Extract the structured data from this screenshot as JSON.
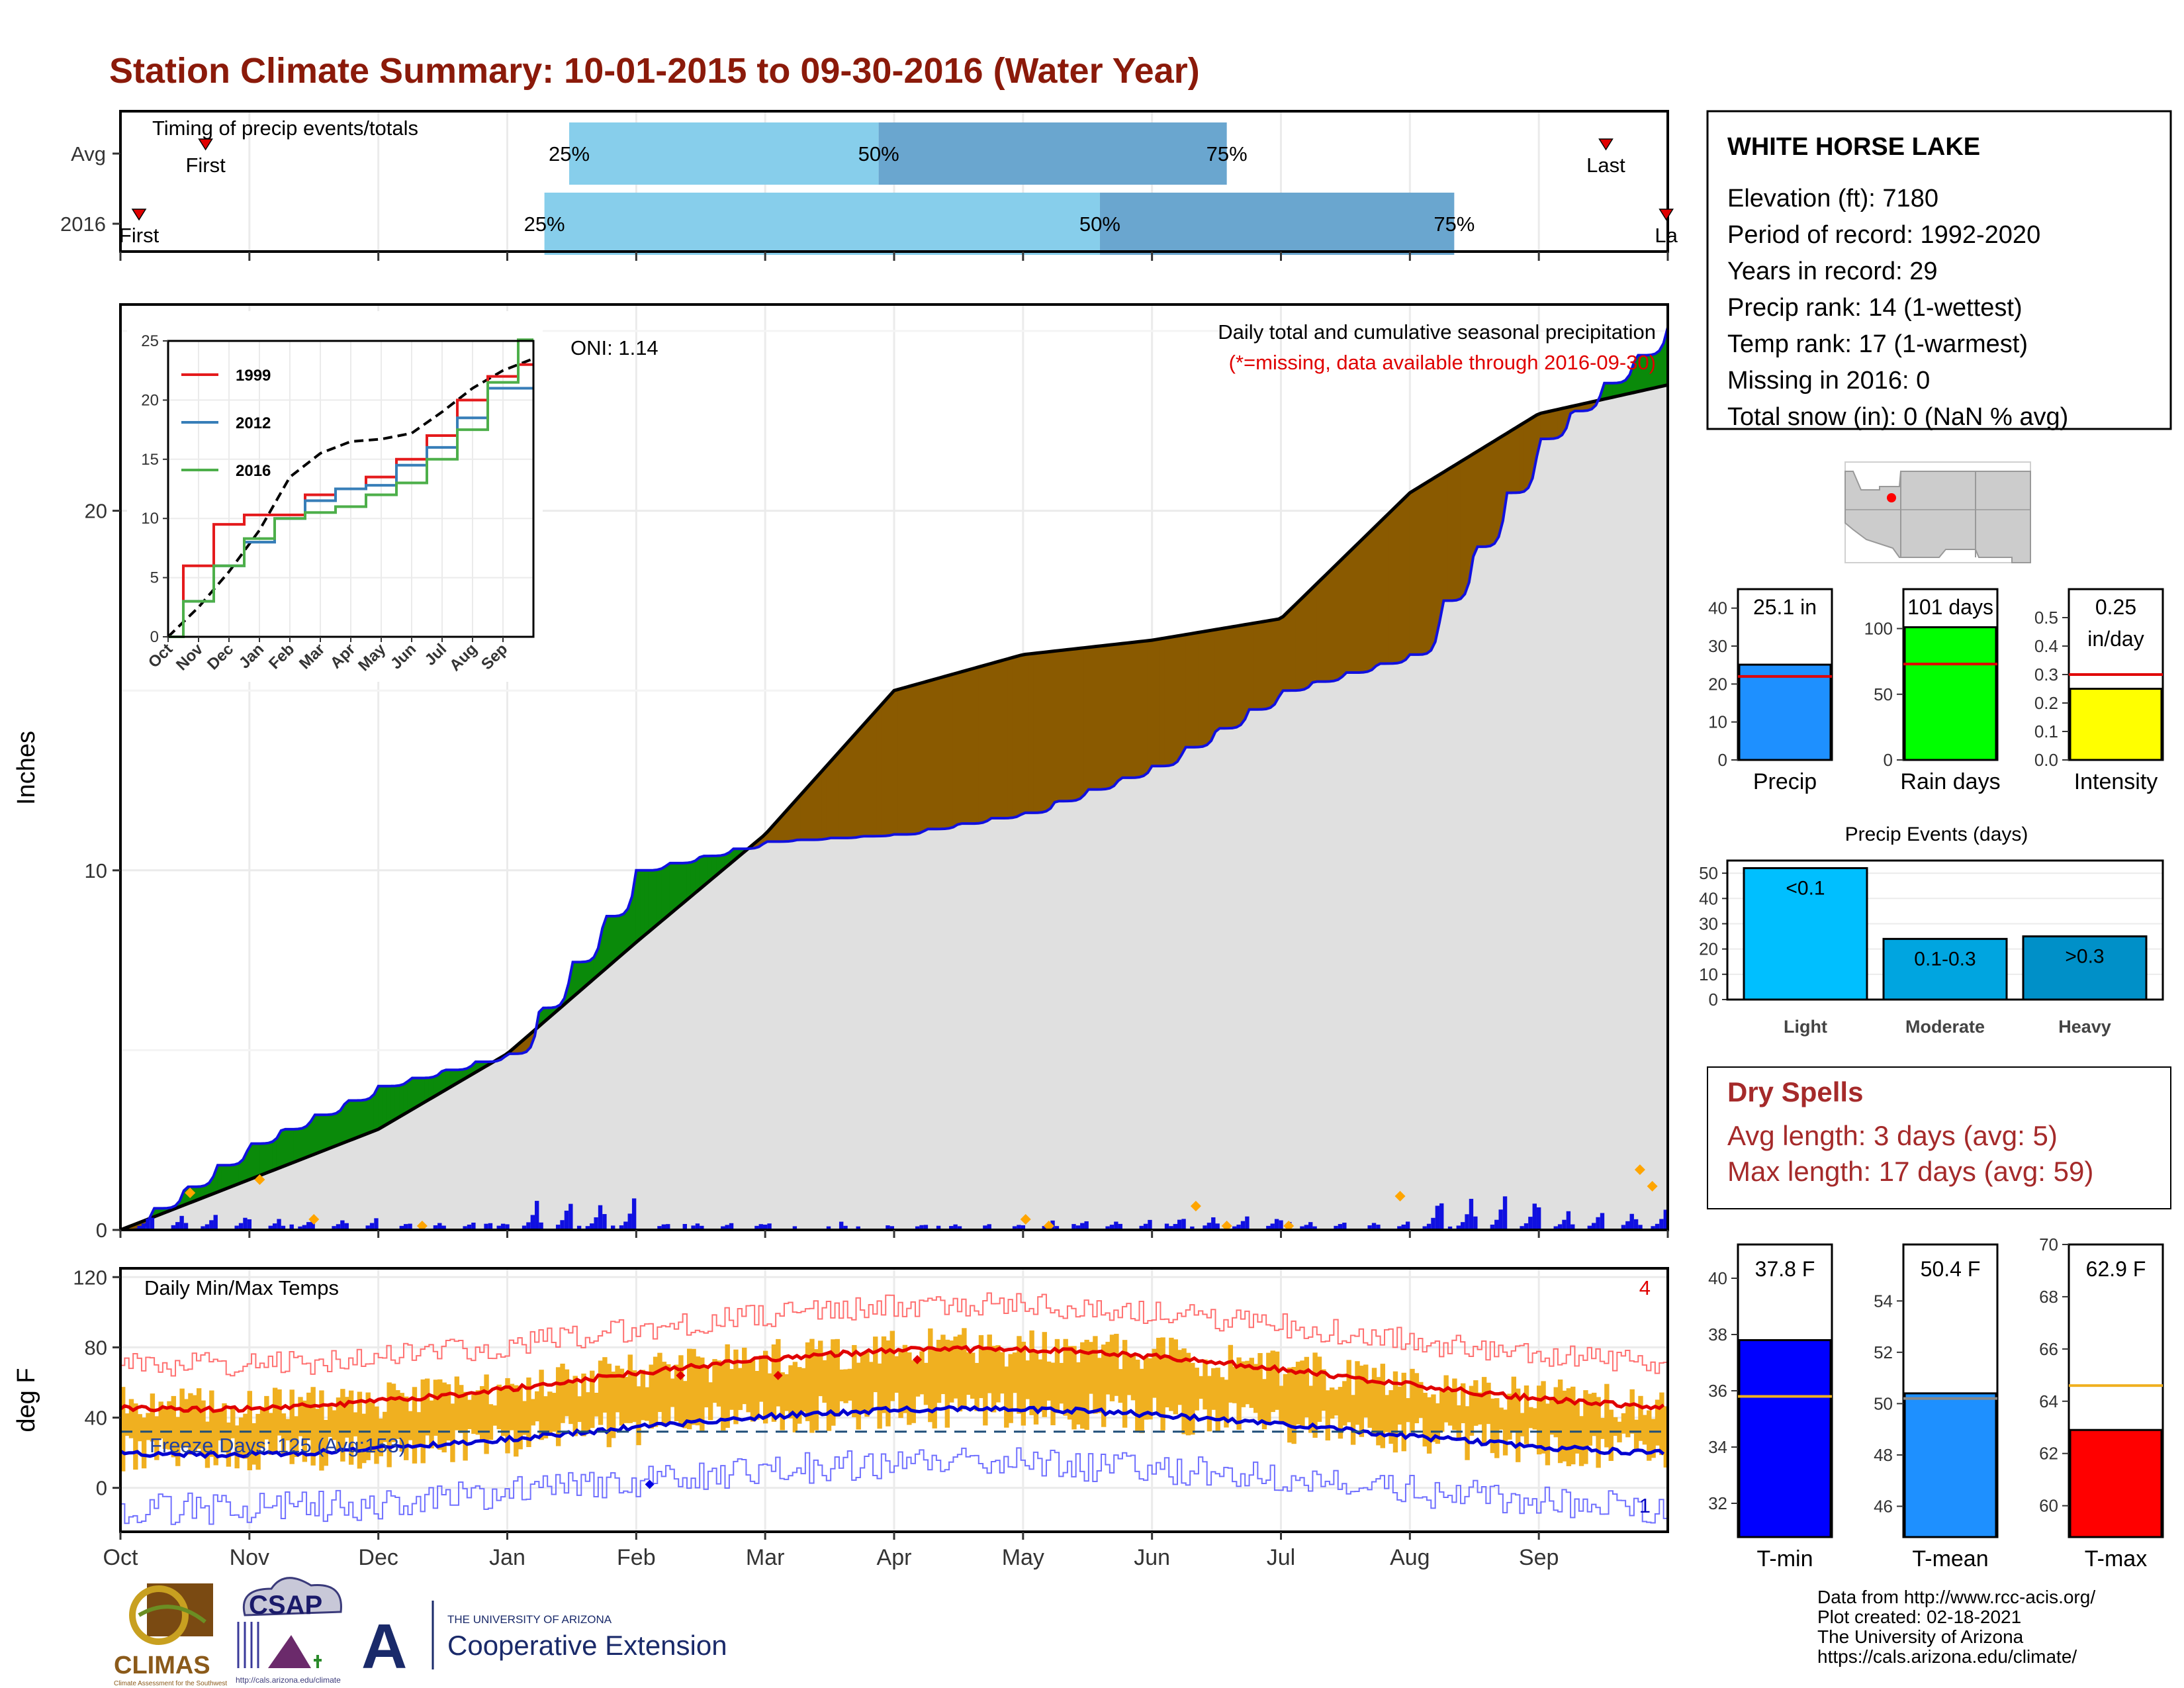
{
  "page_title": "Station Climate Summary: 10-01-2015 to 09-30-2016 (Water Year)",
  "months": [
    "Oct",
    "Nov",
    "Dec",
    "Jan",
    "Feb",
    "Mar",
    "Apr",
    "May",
    "Jun",
    "Jul",
    "Aug",
    "Sep"
  ],
  "timing": {
    "title": "Timing of precip events/totals",
    "rows": [
      {
        "label": "Avg",
        "first_label": "First",
        "last_label": "Last",
        "first_frac": 0.055,
        "last_frac": 0.96,
        "p25": 0.29,
        "p50": 0.49,
        "p75": 0.715,
        "p25_label": "25%",
        "p50_label": "50%",
        "p75_label": "75%"
      },
      {
        "label": "2016",
        "first_label": "First",
        "last_label": "La",
        "first_frac": 0.012,
        "last_frac": 0.999,
        "p25": 0.274,
        "p50": 0.633,
        "p75": 0.862,
        "p25_label": "25%",
        "p50_label": "50%",
        "p75_label": "75%"
      }
    ]
  },
  "station": {
    "name": "WHITE HORSE LAKE",
    "lines": [
      "Elevation (ft): 7180",
      "Period of record: 1992-2020",
      "Years in record: 29",
      "Precip rank: 14 (1-wettest)",
      "Temp rank: 17 (1-warmest)",
      "Missing in 2016: 0",
      "Total snow (in): 0 (NaN % avg)"
    ]
  },
  "main_precip": {
    "ylabel": "Inches",
    "title_line": "Daily total and cumulative seasonal precipitation",
    "missing_note": "(*=missing, data available through 2016-09-30)",
    "oni": "ONI: 1.14",
    "ylim": [
      0,
      25
    ],
    "yticks": [
      0,
      10,
      20
    ],
    "colors": {
      "observed": "#1010e0",
      "average": "#000000",
      "above": "#0a8a0a",
      "below": "#8a5a00",
      "fill": "#e0e0e0"
    }
  },
  "inset": {
    "ylim": [
      0,
      25
    ],
    "yticks": [
      0,
      5,
      10,
      15,
      20,
      25
    ],
    "month_labels": [
      "Oct",
      "Nov",
      "Dec",
      "Jan",
      "Feb",
      "Mar",
      "Apr",
      "May",
      "Jun",
      "Jul",
      "Aug",
      "Sep"
    ],
    "legend": [
      {
        "name": "1999",
        "color": "#e41a1c"
      },
      {
        "name": "2012",
        "color": "#377eb8"
      },
      {
        "name": "2016",
        "color": "#4daf4a"
      }
    ]
  },
  "temps": {
    "ylabel": "deg F",
    "title": "Daily Min/Max Temps",
    "freeze_text": "Freeze Days: 125 (Avg:153)",
    "record_high_count": "4",
    "record_low_count": "1",
    "ylim": [
      -25,
      125
    ],
    "yticks": [
      0,
      40,
      80,
      120
    ]
  },
  "chart_data": [
    {
      "type": "area",
      "title": "Daily total and cumulative seasonal precipitation",
      "ylabel": "Inches",
      "ylim": [
        0,
        25
      ],
      "x_months": [
        "Oct",
        "Nov",
        "Dec",
        "Jan",
        "Feb",
        "Mar",
        "Apr",
        "May",
        "Jun",
        "Jul",
        "Aug",
        "Sep"
      ],
      "series": [
        {
          "name": "2016",
          "month_start_values": [
            0,
            2.4,
            4.0,
            4.9,
            10.0,
            10.8,
            11.0,
            11.6,
            12.9,
            15.0,
            16.0,
            22.0
          ],
          "end_value": 25.1
        },
        {
          "name": "Avg",
          "month_start_values": [
            0,
            1.4,
            2.8,
            4.9,
            8.0,
            11.0,
            15.0,
            16.0,
            16.4,
            17.0,
            20.5,
            22.7
          ],
          "end_value": 23.5
        }
      ]
    },
    {
      "type": "line",
      "ylim": [
        0,
        25
      ],
      "x_months": [
        "Oct",
        "Nov",
        "Dec",
        "Jan",
        "Feb",
        "Mar",
        "Apr",
        "May",
        "Jun",
        "Jul",
        "Aug",
        "Sep"
      ],
      "series": [
        {
          "name": "Avg",
          "month_start_values": [
            0,
            2.5,
            5.5,
            9.0,
            13.5,
            15.5,
            16.5,
            16.7,
            17.2,
            19.0,
            21.0,
            22.5
          ],
          "end_value": 23.5
        },
        {
          "name": "1999",
          "month_start_values": [
            0,
            6.0,
            9.5,
            10.3,
            10.3,
            12.0,
            12.5,
            13.5,
            15.0,
            17.0,
            20.0,
            22.0
          ],
          "end_value": 23.0
        },
        {
          "name": "2012",
          "month_start_values": [
            0,
            3.0,
            6.0,
            8.0,
            10.0,
            11.5,
            12.5,
            12.8,
            14.5,
            16.0,
            18.5,
            21.0
          ],
          "end_value": 21.0
        },
        {
          "name": "2016",
          "month_start_values": [
            0,
            3.0,
            6.0,
            8.3,
            10.0,
            10.5,
            11.0,
            12.0,
            13.0,
            15.0,
            17.5,
            21.5
          ],
          "end_value": 25.1
        }
      ]
    },
    {
      "type": "bar",
      "title": "",
      "categories": [
        "Precip",
        "Rain days",
        "Intensity"
      ],
      "value_labels": [
        "25.1 in",
        "101 days",
        "0.25"
      ],
      "intensity_unit": "in/day",
      "values": [
        25.1,
        101,
        0.25
      ],
      "averages": [
        22,
        73,
        0.3
      ],
      "ylims": [
        [
          0,
          45
        ],
        [
          0,
          130
        ],
        [
          0,
          0.6
        ]
      ],
      "yticks": [
        [
          0,
          10,
          20,
          30,
          40
        ],
        [
          0,
          50,
          100
        ],
        [
          0.0,
          0.1,
          0.2,
          0.3,
          0.4,
          0.5
        ]
      ],
      "colors": [
        "#1e90ff",
        "#00ff00",
        "#ffff00"
      ]
    },
    {
      "type": "bar",
      "title": "Precip Events (days)",
      "categories": [
        "Light",
        "Moderate",
        "Heavy"
      ],
      "bar_labels": [
        "<0.1",
        "0.1-0.3",
        ">0.3"
      ],
      "values": [
        52,
        24,
        25
      ],
      "ylim": [
        0,
        55
      ],
      "yticks": [
        0,
        10,
        20,
        30,
        40,
        50
      ],
      "colors": [
        "#00bfff",
        "#00a5e0",
        "#0090c8"
      ]
    },
    {
      "type": "bar",
      "categories": [
        "T-min",
        "T-mean",
        "T-max"
      ],
      "value_labels": [
        "37.8 F",
        "50.4 F",
        "62.9 F"
      ],
      "values": [
        37.8,
        50.4,
        62.9
      ],
      "averages": [
        35.8,
        50.2,
        64.6
      ],
      "ylims": [
        [
          30.8,
          41.2
        ],
        [
          44.8,
          56.2
        ],
        [
          58.8,
          70
        ]
      ],
      "yticks": [
        [
          32,
          34,
          36,
          38,
          40
        ],
        [
          46,
          48,
          50,
          52,
          54
        ],
        [
          60,
          62,
          64,
          66,
          68,
          70
        ]
      ],
      "colors": [
        "#0000ff",
        "#1e90ff",
        "#ff0000"
      ]
    }
  ],
  "dry_spells": {
    "title": "Dry Spells",
    "avg_line": "Avg length: 3 days (avg: 5)",
    "max_line": "Max length: 17 days (avg: 59)"
  },
  "footer": {
    "lines": [
      "Data from http://www.rcc-acis.org/",
      "Plot created: 02-18-2021",
      "The University of Arizona",
      "https://cals.arizona.edu/climate/"
    ],
    "climas": "CLIMAS",
    "climas_sub": "Climate Assessment for the Southwest",
    "csap": "CSAP",
    "csap_url": "http://cals.arizona.edu/climate",
    "ua_letter": "A",
    "ua_small": "THE UNIVERSITY OF ARIZONA",
    "ua_big": "Cooperative Extension"
  }
}
